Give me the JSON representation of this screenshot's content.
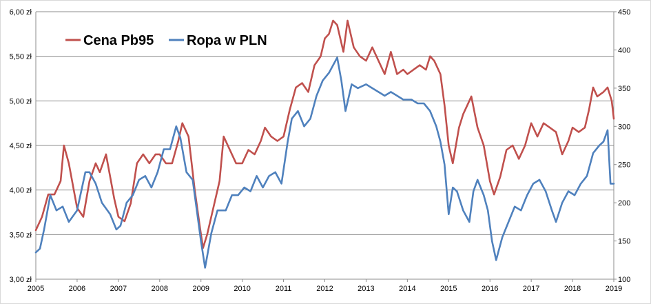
{
  "chart_data": {
    "type": "line",
    "title": "",
    "xlabel": "",
    "ylabel_left": "",
    "ylabel_right": "",
    "x_ticks": [
      "2005",
      "2006",
      "2007",
      "2008",
      "2009",
      "2010",
      "2011",
      "2012",
      "2013",
      "2014",
      "2015",
      "2016",
      "2017",
      "2018",
      "2019"
    ],
    "y_left_ticks": [
      "3,00 zł",
      "3,50 zł",
      "4,00 zł",
      "4,50 zł",
      "5,00 zł",
      "5,50 zł",
      "6,00 zł"
    ],
    "y_right_ticks": [
      "100",
      "150",
      "200",
      "250",
      "300",
      "350",
      "400",
      "450"
    ],
    "ylim_left": [
      3.0,
      6.0
    ],
    "ylim_right": [
      100,
      450
    ],
    "xlim": [
      2005.0,
      2019.0
    ],
    "grid": true,
    "legend_placement": "top-left",
    "series": [
      {
        "name": "Cena Pb95",
        "axis": "left",
        "color": "#c0504d",
        "x": [
          2005.0,
          2005.15,
          2005.3,
          2005.45,
          2005.6,
          2005.68,
          2005.8,
          2006.0,
          2006.15,
          2006.3,
          2006.45,
          2006.55,
          2006.7,
          2006.9,
          2007.0,
          2007.15,
          2007.3,
          2007.45,
          2007.6,
          2007.75,
          2007.9,
          2008.0,
          2008.15,
          2008.3,
          2008.45,
          2008.55,
          2008.7,
          2008.85,
          2008.97,
          2009.05,
          2009.15,
          2009.3,
          2009.45,
          2009.55,
          2009.7,
          2009.85,
          2010.0,
          2010.15,
          2010.3,
          2010.45,
          2010.55,
          2010.7,
          2010.85,
          2011.0,
          2011.15,
          2011.3,
          2011.45,
          2011.6,
          2011.75,
          2011.9,
          2012.0,
          2012.1,
          2012.2,
          2012.3,
          2012.45,
          2012.55,
          2012.7,
          2012.85,
          2013.0,
          2013.15,
          2013.3,
          2013.45,
          2013.6,
          2013.75,
          2013.9,
          2014.0,
          2014.15,
          2014.3,
          2014.45,
          2014.55,
          2014.65,
          2014.8,
          2014.9,
          2015.0,
          2015.1,
          2015.25,
          2015.35,
          2015.45,
          2015.55,
          2015.7,
          2015.85,
          2016.0,
          2016.1,
          2016.25,
          2016.4,
          2016.55,
          2016.7,
          2016.85,
          2017.0,
          2017.15,
          2017.3,
          2017.45,
          2017.6,
          2017.75,
          2017.9,
          2018.0,
          2018.15,
          2018.3,
          2018.4,
          2018.5,
          2018.6,
          2018.75,
          2018.85,
          2018.95,
          2019.0
        ],
        "values": [
          3.55,
          3.7,
          3.95,
          3.95,
          4.1,
          4.5,
          4.3,
          3.8,
          3.7,
          4.1,
          4.3,
          4.2,
          4.4,
          3.9,
          3.7,
          3.65,
          3.85,
          4.3,
          4.4,
          4.3,
          4.4,
          4.4,
          4.3,
          4.3,
          4.55,
          4.75,
          4.6,
          4.0,
          3.6,
          3.35,
          3.5,
          3.8,
          4.1,
          4.6,
          4.45,
          4.3,
          4.3,
          4.45,
          4.4,
          4.55,
          4.7,
          4.6,
          4.55,
          4.6,
          4.9,
          5.15,
          5.2,
          5.1,
          5.4,
          5.5,
          5.7,
          5.75,
          5.9,
          5.85,
          5.55,
          5.9,
          5.6,
          5.5,
          5.45,
          5.6,
          5.45,
          5.3,
          5.55,
          5.3,
          5.35,
          5.3,
          5.35,
          5.4,
          5.35,
          5.5,
          5.45,
          5.3,
          4.95,
          4.5,
          4.3,
          4.7,
          4.85,
          4.95,
          5.05,
          4.7,
          4.5,
          4.1,
          3.95,
          4.15,
          4.45,
          4.5,
          4.35,
          4.5,
          4.75,
          4.6,
          4.75,
          4.7,
          4.65,
          4.4,
          4.55,
          4.7,
          4.65,
          4.7,
          4.9,
          5.15,
          5.05,
          5.1,
          5.15,
          5.0,
          4.8
        ]
      },
      {
        "name": "Ropa w PLN",
        "axis": "right",
        "color": "#4f81bd",
        "x": [
          2005.0,
          2005.1,
          2005.2,
          2005.35,
          2005.5,
          2005.65,
          2005.8,
          2006.0,
          2006.2,
          2006.3,
          2006.45,
          2006.6,
          2006.8,
          2006.95,
          2007.05,
          2007.2,
          2007.35,
          2007.5,
          2007.65,
          2007.8,
          2007.95,
          2008.1,
          2008.25,
          2008.4,
          2008.5,
          2008.65,
          2008.8,
          2008.95,
          2009.0,
          2009.1,
          2009.25,
          2009.4,
          2009.6,
          2009.75,
          2009.9,
          2010.05,
          2010.2,
          2010.35,
          2010.5,
          2010.65,
          2010.8,
          2010.95,
          2011.1,
          2011.2,
          2011.35,
          2011.5,
          2011.65,
          2011.8,
          2011.95,
          2012.1,
          2012.2,
          2012.3,
          2012.4,
          2012.5,
          2012.65,
          2012.8,
          2013.0,
          2013.15,
          2013.3,
          2013.45,
          2013.6,
          2013.75,
          2013.9,
          2014.1,
          2014.25,
          2014.4,
          2014.55,
          2014.7,
          2014.8,
          2014.9,
          2015.0,
          2015.1,
          2015.2,
          2015.35,
          2015.5,
          2015.6,
          2015.7,
          2015.85,
          2015.95,
          2016.05,
          2016.15,
          2016.3,
          2016.45,
          2016.6,
          2016.75,
          2016.9,
          2017.05,
          2017.2,
          2017.35,
          2017.5,
          2017.6,
          2017.75,
          2017.9,
          2018.05,
          2018.2,
          2018.35,
          2018.5,
          2018.65,
          2018.75,
          2018.85,
          2018.92,
          2019.0
        ],
        "values": [
          135,
          140,
          165,
          210,
          190,
          195,
          175,
          190,
          240,
          240,
          225,
          200,
          185,
          165,
          170,
          200,
          210,
          230,
          235,
          220,
          240,
          270,
          270,
          300,
          285,
          240,
          230,
          170,
          150,
          115,
          160,
          190,
          190,
          210,
          210,
          220,
          215,
          235,
          220,
          235,
          240,
          225,
          280,
          310,
          320,
          300,
          310,
          340,
          360,
          370,
          380,
          390,
          360,
          320,
          355,
          350,
          355,
          350,
          345,
          340,
          345,
          340,
          335,
          335,
          330,
          330,
          320,
          300,
          280,
          250,
          185,
          220,
          215,
          190,
          175,
          215,
          230,
          210,
          190,
          150,
          125,
          155,
          175,
          195,
          190,
          210,
          225,
          230,
          215,
          190,
          175,
          200,
          215,
          210,
          225,
          235,
          265,
          275,
          280,
          295,
          225,
          225
        ]
      }
    ]
  }
}
